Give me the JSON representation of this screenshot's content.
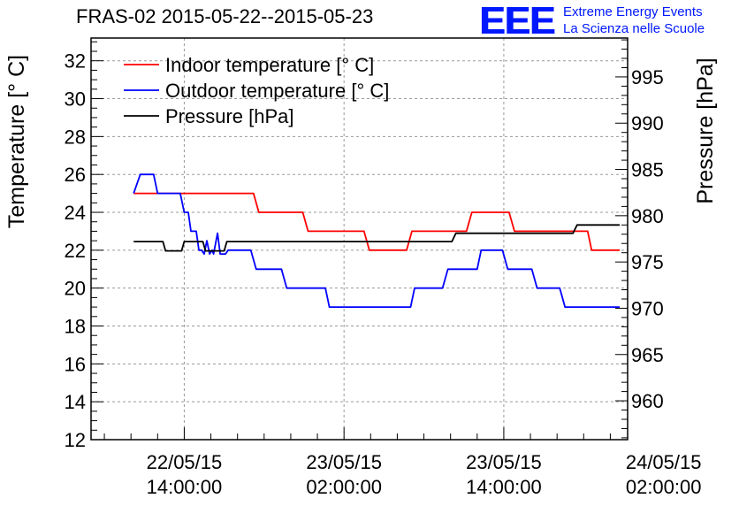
{
  "header": {
    "title": "FRAS-02 2015-05-22--2015-05-23",
    "logo": {
      "mark": "EEE",
      "line1": "Extreme Energy Events",
      "line2": "La Scienza nelle Scuole"
    }
  },
  "chart_data": {
    "type": "line",
    "title": "FRAS-02 2015-05-22--2015-05-23",
    "grid": true,
    "legend_placement": "top-left",
    "x_axis": {
      "label": "",
      "range_hours": [
        -7.0,
        33.3
      ],
      "ticks": [
        {
          "hours": 0,
          "date": "22/05/15",
          "time": "14:00:00"
        },
        {
          "hours": 12,
          "date": "23/05/15",
          "time": "02:00:00"
        },
        {
          "hours": 24,
          "date": "23/05/15",
          "time": "14:00:00"
        },
        {
          "hours": 36,
          "date": "24/05/15",
          "time": "02:00:00"
        }
      ]
    },
    "y_axis_left": {
      "label": "Temperature [° C]",
      "range": [
        12,
        33.2
      ],
      "ticks": [
        12,
        14,
        16,
        18,
        20,
        22,
        24,
        26,
        28,
        30,
        32
      ]
    },
    "y_axis_right": {
      "label": "Pressure [hPa]",
      "range": [
        955.8,
        999.2
      ],
      "ticks": [
        960,
        965,
        970,
        975,
        980,
        985,
        990,
        995
      ]
    },
    "series": [
      {
        "name": "Indoor temperature [° C]",
        "color": "#ff0000",
        "axis": "left",
        "points": [
          [
            -3.8,
            25
          ],
          [
            5.2,
            25
          ],
          [
            5.6,
            24
          ],
          [
            8.9,
            24
          ],
          [
            9.3,
            23
          ],
          [
            13.5,
            23
          ],
          [
            13.9,
            22
          ],
          [
            16.7,
            22
          ],
          [
            17.1,
            23
          ],
          [
            21.2,
            23
          ],
          [
            21.6,
            24
          ],
          [
            24.4,
            24
          ],
          [
            24.8,
            23
          ],
          [
            30.3,
            23
          ],
          [
            30.6,
            22
          ],
          [
            32.7,
            22
          ]
        ]
      },
      {
        "name": "Outdoor temperature [° C]",
        "color": "#0000ff",
        "axis": "left",
        "points": [
          [
            -3.8,
            25
          ],
          [
            -3.3,
            26
          ],
          [
            -2.3,
            26
          ],
          [
            -2.0,
            25
          ],
          [
            -0.3,
            25
          ],
          [
            0.0,
            24
          ],
          [
            0.3,
            24
          ],
          [
            0.5,
            23
          ],
          [
            0.9,
            23
          ],
          [
            1.1,
            22
          ],
          [
            1.3,
            22
          ],
          [
            1.5,
            21.8
          ],
          [
            1.7,
            22.5
          ],
          [
            1.9,
            21.8
          ],
          [
            2.1,
            22
          ],
          [
            2.2,
            21.8
          ],
          [
            2.5,
            22.9
          ],
          [
            2.7,
            21.8
          ],
          [
            3.1,
            21.8
          ],
          [
            3.3,
            22
          ],
          [
            5.0,
            22
          ],
          [
            5.4,
            21
          ],
          [
            7.3,
            21
          ],
          [
            7.7,
            20
          ],
          [
            10.6,
            20
          ],
          [
            10.9,
            19
          ],
          [
            17.0,
            19
          ],
          [
            17.3,
            20
          ],
          [
            19.4,
            20
          ],
          [
            19.8,
            21
          ],
          [
            22.0,
            21
          ],
          [
            22.3,
            22
          ],
          [
            23.9,
            22
          ],
          [
            24.3,
            21
          ],
          [
            26.1,
            21
          ],
          [
            26.5,
            20
          ],
          [
            28.2,
            20
          ],
          [
            28.6,
            19
          ],
          [
            32.7,
            19
          ]
        ]
      },
      {
        "name": "Pressure [hPa]",
        "color": "#000000",
        "axis": "right",
        "points": [
          [
            -3.8,
            977.2
          ],
          [
            -1.6,
            977.2
          ],
          [
            -1.4,
            976.2
          ],
          [
            -0.2,
            976.2
          ],
          [
            0.0,
            977.2
          ],
          [
            1.4,
            977.2
          ],
          [
            1.6,
            976.2
          ],
          [
            3.0,
            976.2
          ],
          [
            3.2,
            977.2
          ],
          [
            20.1,
            977.2
          ],
          [
            20.4,
            978.1
          ],
          [
            29.2,
            978.1
          ],
          [
            29.5,
            979.0
          ],
          [
            32.7,
            979.0
          ]
        ]
      }
    ]
  }
}
